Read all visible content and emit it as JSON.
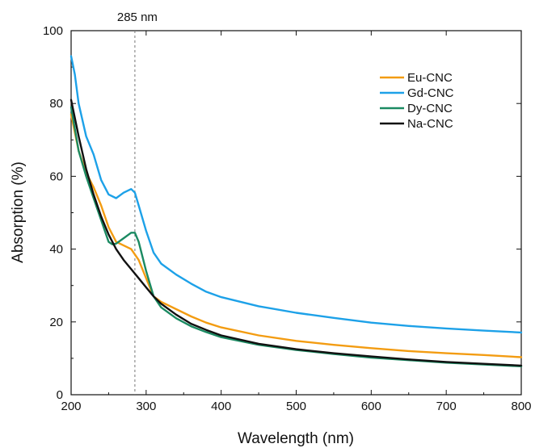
{
  "chart_data": {
    "type": "line",
    "title": "",
    "xlabel": "Wavelength (nm)",
    "ylabel": "Absorption (%)",
    "xlim": [
      200,
      800
    ],
    "ylim": [
      0,
      100
    ],
    "xticks": [
      200,
      300,
      400,
      500,
      600,
      700,
      800
    ],
    "yticks": [
      0,
      20,
      40,
      60,
      80,
      100
    ],
    "grid": false,
    "legend_position": "top-right",
    "annotation": {
      "label": "285 nm",
      "x": 285,
      "style": "dashed vertical line"
    },
    "series": [
      {
        "name": "Eu-CNC",
        "color": "#f39c12",
        "x": [
          200,
          210,
          220,
          230,
          240,
          250,
          260,
          270,
          280,
          290,
          300,
          310,
          320,
          340,
          360,
          380,
          400,
          450,
          500,
          550,
          600,
          650,
          700,
          750,
          800
        ],
        "y": [
          77,
          67,
          61,
          57,
          52,
          46,
          42,
          41,
          40,
          37,
          32,
          27,
          25.5,
          23.5,
          21.5,
          19.8,
          18.5,
          16.3,
          14.8,
          13.7,
          12.8,
          12,
          11.4,
          10.9,
          10.3
        ]
      },
      {
        "name": "Gd-CNC",
        "color": "#1da1e8",
        "x": [
          200,
          205,
          210,
          220,
          230,
          240,
          250,
          260,
          270,
          280,
          285,
          290,
          300,
          310,
          320,
          340,
          360,
          380,
          400,
          450,
          500,
          550,
          600,
          650,
          700,
          750,
          800
        ],
        "y": [
          93,
          88,
          80,
          71,
          66,
          59,
          55,
          54,
          55.5,
          56.5,
          55.5,
          52,
          45,
          39,
          36,
          33,
          30.5,
          28.3,
          26.8,
          24.3,
          22.5,
          21.1,
          19.8,
          18.9,
          18.2,
          17.6,
          17.1
        ]
      },
      {
        "name": "Dy-CNC",
        "color": "#1b8a62",
        "x": [
          200,
          210,
          220,
          230,
          240,
          250,
          255,
          260,
          270,
          280,
          285,
          290,
          300,
          310,
          320,
          340,
          360,
          380,
          400,
          450,
          500,
          550,
          600,
          650,
          700,
          750,
          800
        ],
        "y": [
          79,
          67,
          60,
          54,
          48,
          42,
          41.3,
          41.5,
          43,
          44.5,
          44.5,
          42,
          34,
          27,
          24,
          21,
          18.8,
          17.2,
          15.8,
          13.7,
          12.3,
          11.2,
          10.2,
          9.5,
          8.8,
          8.3,
          7.8
        ]
      },
      {
        "name": "Na-CNC",
        "color": "#111111",
        "x": [
          200,
          210,
          220,
          230,
          240,
          250,
          260,
          270,
          280,
          290,
          300,
          310,
          320,
          340,
          360,
          380,
          400,
          450,
          500,
          550,
          600,
          650,
          700,
          750,
          800
        ],
        "y": [
          81,
          71,
          62,
          55,
          49,
          44,
          40,
          37,
          34.5,
          32,
          29.5,
          27,
          25,
          22,
          19.5,
          17.8,
          16.3,
          14,
          12.5,
          11.4,
          10.5,
          9.7,
          9,
          8.5,
          8
        ]
      }
    ]
  }
}
